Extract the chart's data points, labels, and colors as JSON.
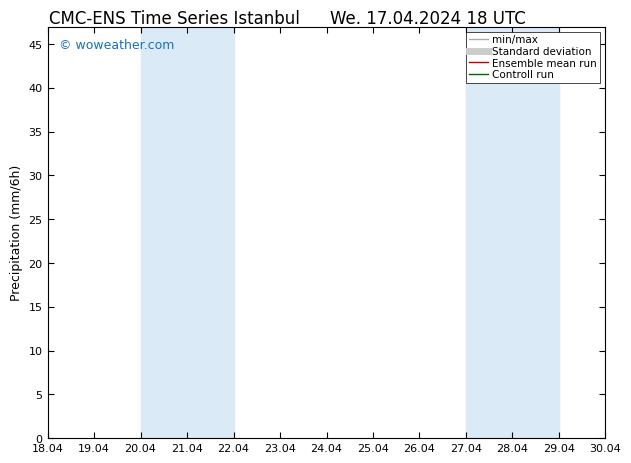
{
  "title_left": "CMC-ENS Time Series Istanbul",
  "title_right": "We. 17.04.2024 18 UTC",
  "ylabel": "Precipitation (mm/6h)",
  "watermark": "© woweather.com",
  "xticklabels": [
    "18.04",
    "19.04",
    "20.04",
    "21.04",
    "22.04",
    "23.04",
    "24.04",
    "25.04",
    "26.04",
    "27.04",
    "28.04",
    "29.04",
    "30.04"
  ],
  "xtick_positions": [
    0,
    1,
    2,
    3,
    4,
    5,
    6,
    7,
    8,
    9,
    10,
    11,
    12
  ],
  "ylim": [
    0,
    47
  ],
  "yticks": [
    0,
    5,
    10,
    15,
    20,
    25,
    30,
    35,
    40,
    45
  ],
  "shade_bands": [
    {
      "x_start": 2,
      "x_end": 4,
      "color": "#daeaf7"
    },
    {
      "x_start": 9,
      "x_end": 11,
      "color": "#daeaf7"
    }
  ],
  "legend_entries": [
    {
      "label": "min/max",
      "color": "#aaaaaa",
      "lw": 1.0
    },
    {
      "label": "Standard deviation",
      "color": "#cccccc",
      "lw": 5
    },
    {
      "label": "Ensemble mean run",
      "color": "#cc0000",
      "lw": 1.0
    },
    {
      "label": "Controll run",
      "color": "#006600",
      "lw": 1.0
    }
  ],
  "bg_color": "#ffffff",
  "plot_bg_color": "#ffffff",
  "title_fontsize": 12,
  "tick_fontsize": 8,
  "ylabel_fontsize": 9,
  "watermark_color": "#1a6fbd",
  "watermark_fontsize": 9,
  "legend_fontsize": 7.5
}
